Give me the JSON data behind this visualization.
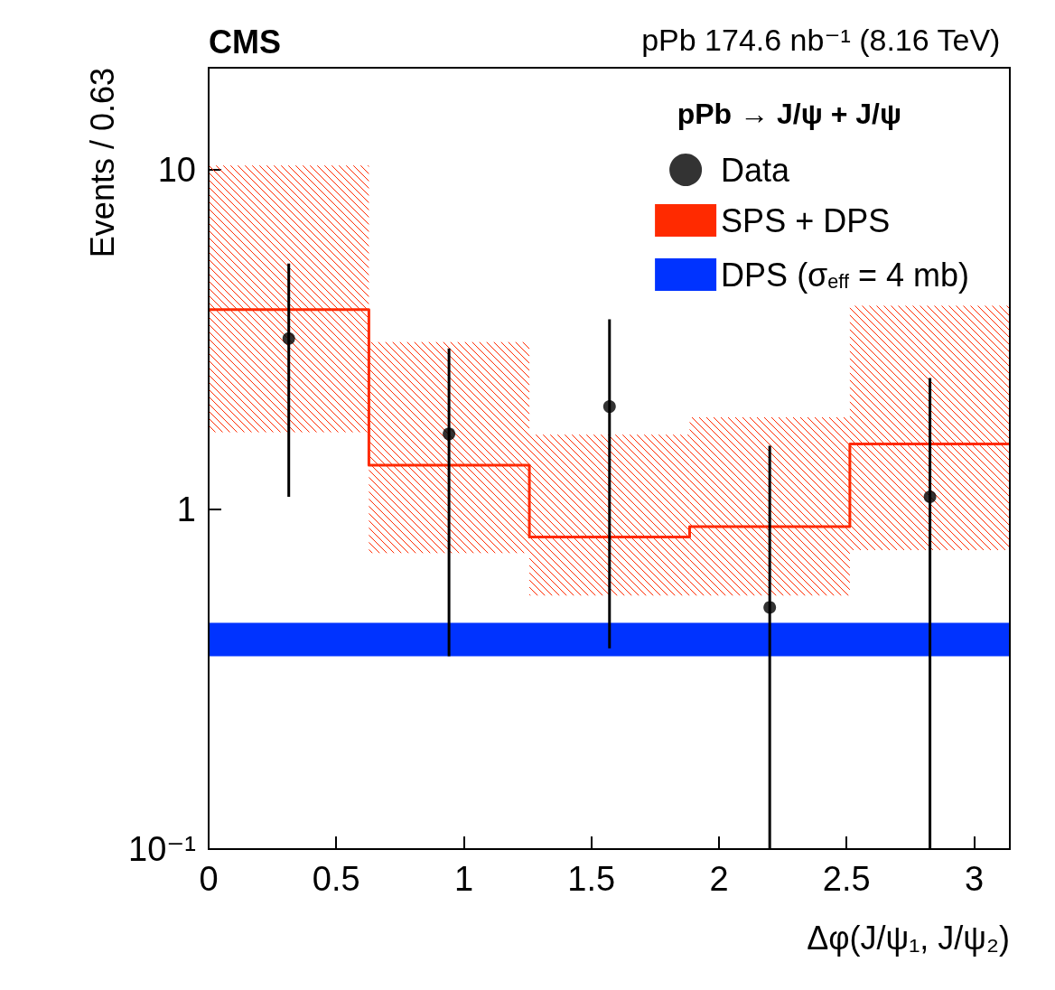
{
  "chart_data": {
    "type": "scatter",
    "title": "pPb 174.6 nb⁻¹ (8.16 TeV)",
    "xlabel": "Δφ(J/ψ₁, J/ψ₂)",
    "ylabel": "Events / 0.63",
    "legend_title": "pPb → J/ψ + J/ψ",
    "annotations": [
      "CMS"
    ],
    "log": "y",
    "grid": false,
    "legend": "top right",
    "xlim": [
      0,
      3.14
    ],
    "xticks": [
      0,
      0.5,
      1,
      1.5,
      2,
      2.5,
      3
    ],
    "ylim": [
      0.1,
      20
    ],
    "yticks": [
      {
        "value": 0.1,
        "label": "10⁻¹"
      },
      1,
      10
    ],
    "series": [
      {
        "name": "Data",
        "color": "#000000",
        "marker": "circle",
        "x": [
          0.314,
          0.942,
          1.571,
          2.199,
          2.827
        ],
        "values": [
          3.19,
          1.67,
          2.01,
          0.515,
          1.09
        ],
        "errors": [
          [
            1.09,
            5.3
          ],
          [
            0.37,
            2.98
          ],
          [
            0.39,
            3.63
          ],
          [
            0.1,
            1.54
          ],
          [
            0.1,
            2.44
          ]
        ]
      },
      {
        "name": "SPS + DPS",
        "type": "step",
        "color": "#ff2a00",
        "line_style": "solid",
        "x": [
          0,
          0.628,
          1.257,
          1.885,
          2.513,
          3.14
        ],
        "values": [
          3.88,
          1.35,
          0.83,
          0.89,
          1.56,
          1.56
        ],
        "lower": [
          1.69,
          0.745,
          0.558,
          0.558,
          0.76,
          0.76
        ],
        "upper": [
          10.3,
          3.11,
          1.66,
          1.87,
          3.98,
          3.98
        ]
      }
    ],
    "bands": [
      {
        "axis": "y",
        "from": 0.37,
        "to": 0.464,
        "label": "DPS (σ$_{eff}$ = 4 mb)",
        "color": "#0033ff"
      }
    ]
  }
}
